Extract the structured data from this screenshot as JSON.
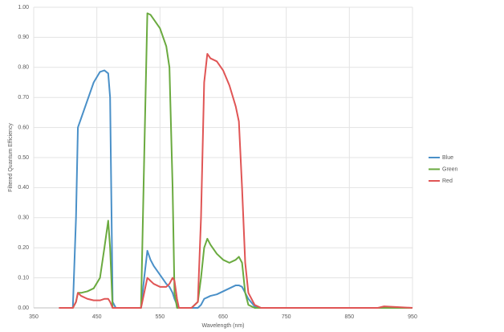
{
  "chart_data": {
    "type": "line",
    "x_label": "Wavelength (nm)",
    "y_label": "Filtered Quantum Efficiency",
    "x": [
      390,
      405,
      412,
      417,
      420,
      425,
      435,
      445,
      455,
      462,
      468,
      471,
      475,
      480,
      520,
      525,
      530,
      535,
      540,
      550,
      560,
      565,
      570,
      573,
      577,
      580,
      600,
      610,
      615,
      620,
      625,
      630,
      640,
      650,
      660,
      670,
      675,
      680,
      685,
      690,
      700,
      710,
      750,
      895,
      905,
      950
    ],
    "series": [
      {
        "name": "Blue",
        "color": "#4a90c8",
        "values": [
          0,
          0,
          0,
          0.3,
          0.6,
          0.63,
          0.69,
          0.75,
          0.785,
          0.79,
          0.78,
          0.7,
          0.02,
          0,
          0,
          0.1,
          0.19,
          0.16,
          0.14,
          0.11,
          0.08,
          0.07,
          0.05,
          0.03,
          0.01,
          0,
          0,
          0,
          0.01,
          0.03,
          0.035,
          0.04,
          0.045,
          0.055,
          0.065,
          0.075,
          0.075,
          0.07,
          0.05,
          0.03,
          0.005,
          0,
          0,
          0,
          0,
          0
        ]
      },
      {
        "name": "Green",
        "color": "#6aaa3f",
        "values": [
          0,
          0,
          0,
          0.02,
          0.05,
          0.05,
          0.055,
          0.065,
          0.1,
          0.2,
          0.29,
          0.2,
          0,
          0,
          0,
          0.5,
          0.98,
          0.975,
          0.96,
          0.93,
          0.87,
          0.8,
          0.4,
          0.05,
          0,
          0,
          0,
          0.02,
          0.1,
          0.2,
          0.23,
          0.21,
          0.18,
          0.16,
          0.15,
          0.16,
          0.17,
          0.15,
          0.05,
          0.01,
          0,
          0,
          0,
          0,
          0,
          0
        ]
      },
      {
        "name": "Red",
        "color": "#e05555",
        "values": [
          0,
          0,
          0,
          0.02,
          0.05,
          0.04,
          0.03,
          0.025,
          0.025,
          0.03,
          0.03,
          0.02,
          0,
          0,
          0,
          0.05,
          0.1,
          0.09,
          0.08,
          0.07,
          0.07,
          0.08,
          0.1,
          0.09,
          0.03,
          0,
          0,
          0.02,
          0.3,
          0.75,
          0.845,
          0.83,
          0.82,
          0.79,
          0.74,
          0.67,
          0.62,
          0.4,
          0.15,
          0.05,
          0.01,
          0,
          0,
          0,
          0.005,
          0
        ]
      }
    ],
    "xlim": [
      350,
      950
    ],
    "xticks": [
      350,
      450,
      550,
      650,
      750,
      850,
      950
    ],
    "ylim": [
      0,
      1
    ],
    "yticks": [
      {
        "value": 0,
        "label": "0.00"
      },
      {
        "value": 0.1,
        "label": "0.10"
      },
      {
        "value": 0.2,
        "label": "0.20"
      },
      {
        "value": 0.3,
        "label": "0.30"
      },
      {
        "value": 0.4,
        "label": "0.40"
      },
      {
        "value": 0.5,
        "label": "0.50"
      },
      {
        "value": 0.6,
        "label": "0.60"
      },
      {
        "value": 0.7,
        "label": "0.70"
      },
      {
        "value": 0.8,
        "label": "0.80"
      },
      {
        "value": 0.9,
        "label": "0.90"
      },
      {
        "value": 1,
        "label": "1.00"
      }
    ],
    "grid": true,
    "legend": "right"
  }
}
